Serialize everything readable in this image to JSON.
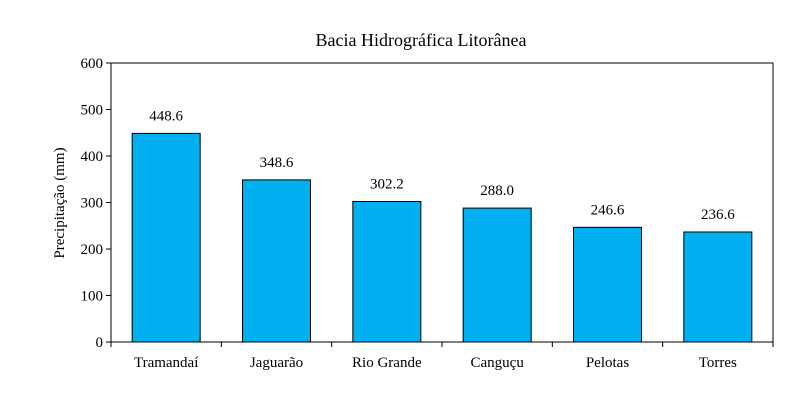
{
  "chart_data": {
    "type": "bar",
    "title": "Bacia Hidrográfica Litorânea",
    "xlabel": "",
    "ylabel": "Precipitação (mm)",
    "categories": [
      "Tramandaí",
      "Jaguarão",
      "Rio Grande",
      "Canguçu",
      "Pelotas",
      "Torres"
    ],
    "values": [
      448.6,
      348.6,
      302.2,
      288.0,
      246.6,
      236.6
    ],
    "data_labels": [
      "448.6",
      "348.6",
      "302.2",
      "288.0",
      "246.6",
      "236.6"
    ],
    "ylim": [
      0,
      600
    ],
    "yticks": [
      0,
      100,
      200,
      300,
      400,
      500,
      600
    ],
    "ytick_labels": [
      "0",
      "100",
      "200",
      "300",
      "400",
      "500",
      "600"
    ],
    "grid": false,
    "legend": "none",
    "bar_color": "#00B0F0",
    "bar_edge_color": "#000000"
  }
}
